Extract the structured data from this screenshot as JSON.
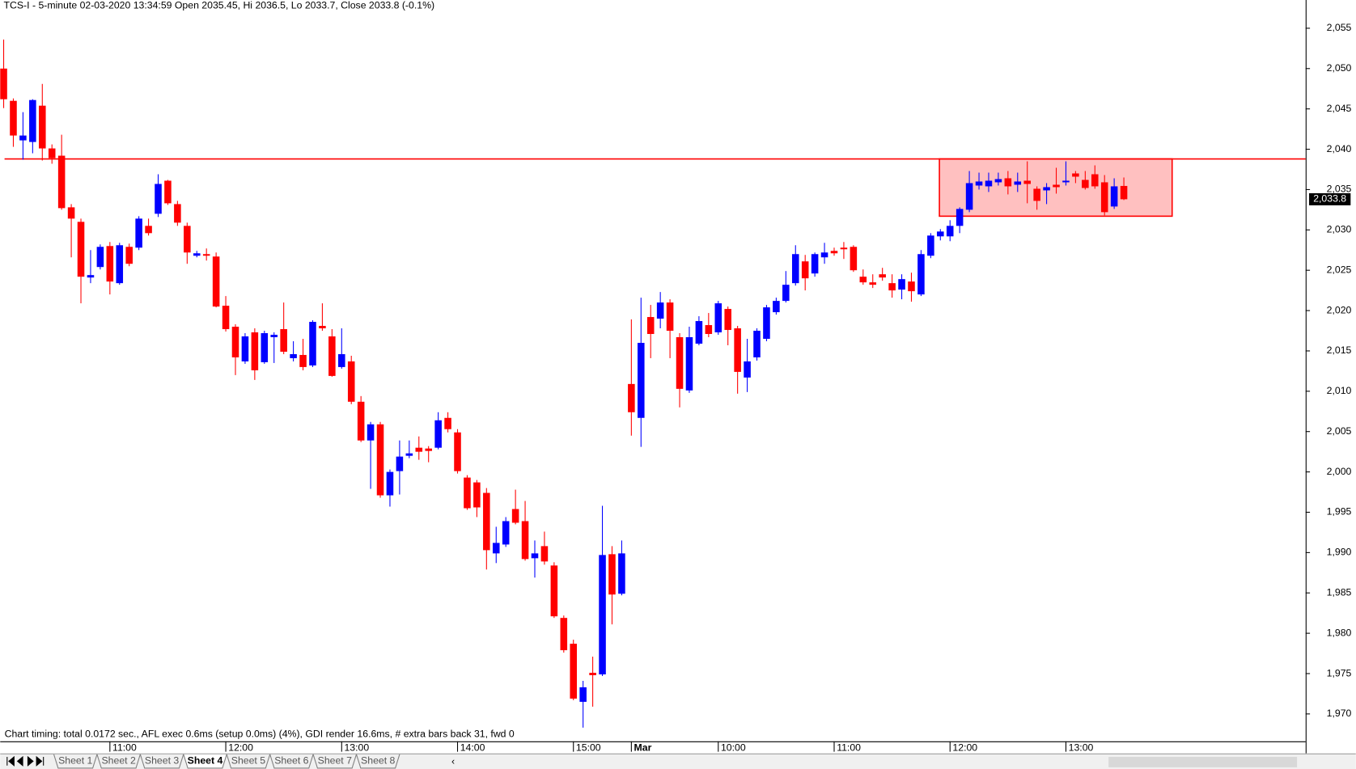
{
  "chart_data": {
    "type": "candlestick",
    "title": "TCS-I - 5-minute 02-03-2020 13:34:59 Open 2035.45, Hi 2036.5, Lo 2033.7, Close 2033.8 (-0.1%)",
    "footer": "Chart timing: total 0.0172 sec., AFL exec 0.6ms (setup 0.0ms) (4%), GDI render 16.6ms, # extra bars back 31, fwd 0",
    "categories": [
      null,
      null,
      null,
      null,
      null,
      null,
      null,
      null,
      null,
      null,
      null,
      "11:00",
      null,
      null,
      null,
      null,
      null,
      null,
      null,
      null,
      null,
      null,
      null,
      "12:00",
      null,
      null,
      null,
      null,
      null,
      null,
      null,
      null,
      null,
      null,
      null,
      "13:00",
      null,
      null,
      null,
      null,
      null,
      null,
      null,
      null,
      null,
      null,
      null,
      "14:00",
      null,
      null,
      null,
      null,
      null,
      null,
      null,
      null,
      null,
      null,
      null,
      "15:00",
      null,
      null,
      null,
      null,
      null,
      "Mar",
      null,
      null,
      null,
      null,
      null,
      null,
      null,
      null,
      "10:00",
      null,
      null,
      null,
      null,
      null,
      null,
      null,
      null,
      null,
      null,
      null,
      "11:00",
      null,
      null,
      null,
      null,
      null,
      null,
      null,
      null,
      null,
      null,
      null,
      "12:00",
      null,
      null,
      null,
      null,
      null,
      null,
      null,
      null,
      null,
      null,
      null,
      "13:00",
      null,
      null,
      null,
      null,
      null,
      null
    ],
    "open": [
      2050.0,
      2046.0,
      2041.1,
      2040.9,
      2045.4,
      2040.1,
      2039.2,
      2032.8,
      2031.0,
      2024.1,
      2025.4,
      2028.0,
      2023.4,
      2027.9,
      2027.8,
      2030.5,
      2032.0,
      2036.1,
      2033.2,
      2030.5,
      2026.8,
      2027.0,
      2026.7,
      2020.6,
      2018.0,
      2013.7,
      2017.3,
      2013.6,
      2016.7,
      2017.7,
      2014.1,
      2014.5,
      2013.2,
      2018.1,
      2016.8,
      2013.0,
      2013.7,
      2008.7,
      2003.9,
      2005.9,
      1997.1,
      2000.1,
      2002.0,
      2003.0,
      2002.9,
      2003.0,
      2006.7,
      2004.9,
      1999.3,
      1998.7,
      1997.4,
      1989.9,
      1991.0,
      1995.4,
      1993.9,
      1989.3,
      1990.8,
      1988.4,
      1981.9,
      1978.7,
      1971.5,
      1975.1,
      1974.9,
      1989.8,
      1984.9,
      2010.9,
      2006.7,
      2019.2,
      2019.0,
      2021.0,
      2016.7,
      2010.1,
      2015.9,
      2018.2,
      2017.3,
      2020.2,
      2017.8,
      2011.7,
      2014.2,
      2016.5,
      2019.8,
      2021.2,
      2023.4,
      2026.1,
      2024.6,
      2026.6,
      2027.4,
      2027.8,
      2027.9,
      2024.2,
      2023.5,
      2024.5,
      2023.4,
      2022.6,
      2023.6,
      2022.0,
      2026.8,
      2029.2,
      2029.2,
      2030.5,
      2032.5,
      2035.5,
      2035.4,
      2035.9,
      2036.4,
      2035.6,
      2036.1,
      2035.1,
      2034.9,
      2035.6,
      2035.9,
      2037.0,
      2036.2,
      2036.9,
      2035.9,
      2032.9,
      2035.45
    ],
    "high": [
      2053.6,
      2046.3,
      2044.6,
      2046.2,
      2048.1,
      2040.6,
      2041.8,
      2033.2,
      2031.4,
      2027.5,
      2028.2,
      2028.5,
      2028.4,
      2028.3,
      2031.7,
      2031.4,
      2036.9,
      2036.2,
      2033.6,
      2030.9,
      2027.4,
      2027.7,
      2027.2,
      2021.8,
      2018.3,
      2017.2,
      2017.8,
      2017.5,
      2017.3,
      2021.0,
      2016.2,
      2016.5,
      2018.8,
      2020.9,
      2017.7,
      2017.8,
      2014.4,
      2009.4,
      2006.2,
      2006.2,
      2000.3,
      2003.9,
      2003.9,
      2004.4,
      2003.2,
      2007.4,
      2007.4,
      2005.3,
      1999.6,
      1999.0,
      1998.0,
      1993.2,
      1994.4,
      1997.8,
      1996.4,
      1991.5,
      1992.6,
      1988.8,
      1982.2,
      1979.2,
      1974.1,
      1977.1,
      1995.8,
      1990.8,
      1991.5,
      2018.9,
      2021.6,
      2020.7,
      2022.3,
      2021.4,
      2017.2,
      2018.0,
      2019.3,
      2019.7,
      2021.2,
      2020.5,
      2018.1,
      2016.5,
      2017.8,
      2020.7,
      2021.6,
      2024.9,
      2028.1,
      2026.9,
      2027.2,
      2028.4,
      2027.8,
      2028.5,
      2028.1,
      2025.1,
      2024.5,
      2025.3,
      2024.5,
      2024.5,
      2024.7,
      2027.5,
      2029.6,
      2030.1,
      2031.2,
      2032.8,
      2037.3,
      2037.1,
      2037.1,
      2037.1,
      2037.3,
      2037.1,
      2038.5,
      2035.4,
      2035.8,
      2037.7,
      2038.5,
      2037.3,
      2037.3,
      2038.0,
      2036.8,
      2036.4,
      2036.5
    ],
    "low": [
      2045.1,
      2040.3,
      2038.7,
      2039.5,
      2038.6,
      2038.2,
      2032.5,
      2026.6,
      2020.9,
      2023.4,
      2025.1,
      2022.0,
      2023.2,
      2025.5,
      2027.5,
      2029.3,
      2031.6,
      2033.1,
      2030.5,
      2025.8,
      2026.6,
      2026.2,
      2020.4,
      2017.4,
      2012.0,
      2013.4,
      2011.4,
      2013.4,
      2013.5,
      2014.6,
      2013.7,
      2012.6,
      2013.0,
      2017.5,
      2011.8,
      2012.8,
      2008.4,
      2003.7,
      1997.9,
      1996.8,
      1995.7,
      1997.2,
      2001.7,
      2001.5,
      2001.2,
      2002.8,
      2004.9,
      1999.8,
      1995.3,
      1994.4,
      1987.9,
      1988.7,
      1990.7,
      1993.5,
      1989.0,
      1986.9,
      1988.5,
      1981.9,
      1977.6,
      1971.7,
      1968.3,
      1970.9,
      1974.7,
      1981.1,
      1984.7,
      2004.5,
      2003.1,
      2014.1,
      2017.8,
      2014.1,
      2008.0,
      2009.8,
      2015.7,
      2016.7,
      2017.0,
      2015.7,
      2009.7,
      2009.9,
      2013.8,
      2016.2,
      2019.5,
      2021.0,
      2023.1,
      2022.5,
      2024.2,
      2025.8,
      2026.8,
      2026.4,
      2024.8,
      2023.2,
      2022.8,
      2023.7,
      2021.6,
      2021.4,
      2021.1,
      2021.8,
      2026.5,
      2028.7,
      2028.6,
      2029.6,
      2032.2,
      2035.0,
      2034.7,
      2035.5,
      2034.4,
      2034.7,
      2033.3,
      2032.5,
      2033.2,
      2034.5,
      2035.5,
      2035.8,
      2035.0,
      2035.1,
      2031.8,
      2032.6,
      2033.7
    ],
    "close": [
      2046.2,
      2041.7,
      2041.7,
      2046.1,
      2040.1,
      2038.9,
      2032.7,
      2031.4,
      2024.2,
      2024.4,
      2027.9,
      2023.6,
      2028.1,
      2025.8,
      2031.4,
      2029.6,
      2035.7,
      2033.3,
      2030.9,
      2027.2,
      2027.1,
      2026.8,
      2020.5,
      2017.7,
      2014.2,
      2016.8,
      2012.6,
      2017.2,
      2017.0,
      2014.9,
      2014.6,
      2013.0,
      2018.6,
      2017.8,
      2011.9,
      2014.6,
      2008.7,
      2003.9,
      2005.9,
      1997.1,
      2000.0,
      2001.9,
      2002.3,
      2002.5,
      2002.6,
      2006.4,
      2005.3,
      2000.1,
      1995.5,
      1995.6,
      1990.3,
      1991.2,
      1993.9,
      1993.7,
      1989.2,
      1989.9,
      1988.9,
      1982.1,
      1977.9,
      1971.9,
      1973.3,
      1974.8,
      1989.7,
      1984.8,
      1989.9,
      2007.4,
      2016.0,
      2017.1,
      2021.0,
      2017.5,
      2010.3,
      2016.7,
      2018.7,
      2017.1,
      2020.9,
      2017.6,
      2012.4,
      2013.7,
      2017.5,
      2020.4,
      2021.2,
      2023.2,
      2027.0,
      2024.0,
      2027.0,
      2027.2,
      2027.1,
      2027.6,
      2025.0,
      2023.5,
      2023.2,
      2024.1,
      2022.5,
      2023.9,
      2022.4,
      2027.0,
      2029.3,
      2029.8,
      2030.5,
      2032.6,
      2035.8,
      2036.0,
      2036.1,
      2036.3,
      2035.4,
      2036.0,
      2035.7,
      2033.6,
      2035.3,
      2035.3,
      2036.1,
      2036.6,
      2035.2,
      2035.4,
      2032.2,
      2035.4,
      2033.8
    ],
    "up_color": "#0000ff",
    "down_color": "#ff0000",
    "ylim": [
      1966.6,
      2058.5
    ],
    "yticks": [
      {
        "value": 1970,
        "label": "1,970"
      },
      {
        "value": 1975,
        "label": "1,975"
      },
      {
        "value": 1980,
        "label": "1,980"
      },
      {
        "value": 1985,
        "label": "1,985"
      },
      {
        "value": 1990,
        "label": "1,990"
      },
      {
        "value": 1995,
        "label": "1,995"
      },
      {
        "value": 2000,
        "label": "2,000"
      },
      {
        "value": 2005,
        "label": "2,005"
      },
      {
        "value": 2010,
        "label": "2,010"
      },
      {
        "value": 2015,
        "label": "2,015"
      },
      {
        "value": 2020,
        "label": "2,020"
      },
      {
        "value": 2025,
        "label": "2,025"
      },
      {
        "value": 2030,
        "label": "2,030"
      },
      {
        "value": 2035,
        "label": "2,035"
      },
      {
        "value": 2040,
        "label": "2,040"
      },
      {
        "value": 2045,
        "label": "2,045"
      },
      {
        "value": 2050,
        "label": "2,050"
      },
      {
        "value": 2055,
        "label": "2,055"
      }
    ],
    "hline": {
      "value": 2038.8,
      "color": "#ff0000"
    },
    "zone": {
      "x": [
        96.9,
        121
      ],
      "y": [
        2031.7,
        2038.8
      ],
      "fill": "#ffc0c0",
      "stroke": "#ff0000"
    },
    "last_label": "2,033.8",
    "tabs": [
      "Sheet 1",
      "Sheet 2",
      "Sheet 3",
      "Sheet 4",
      "Sheet 5",
      "Sheet 6",
      "Sheet 7",
      "Sheet 8"
    ],
    "active_tab": 3
  }
}
